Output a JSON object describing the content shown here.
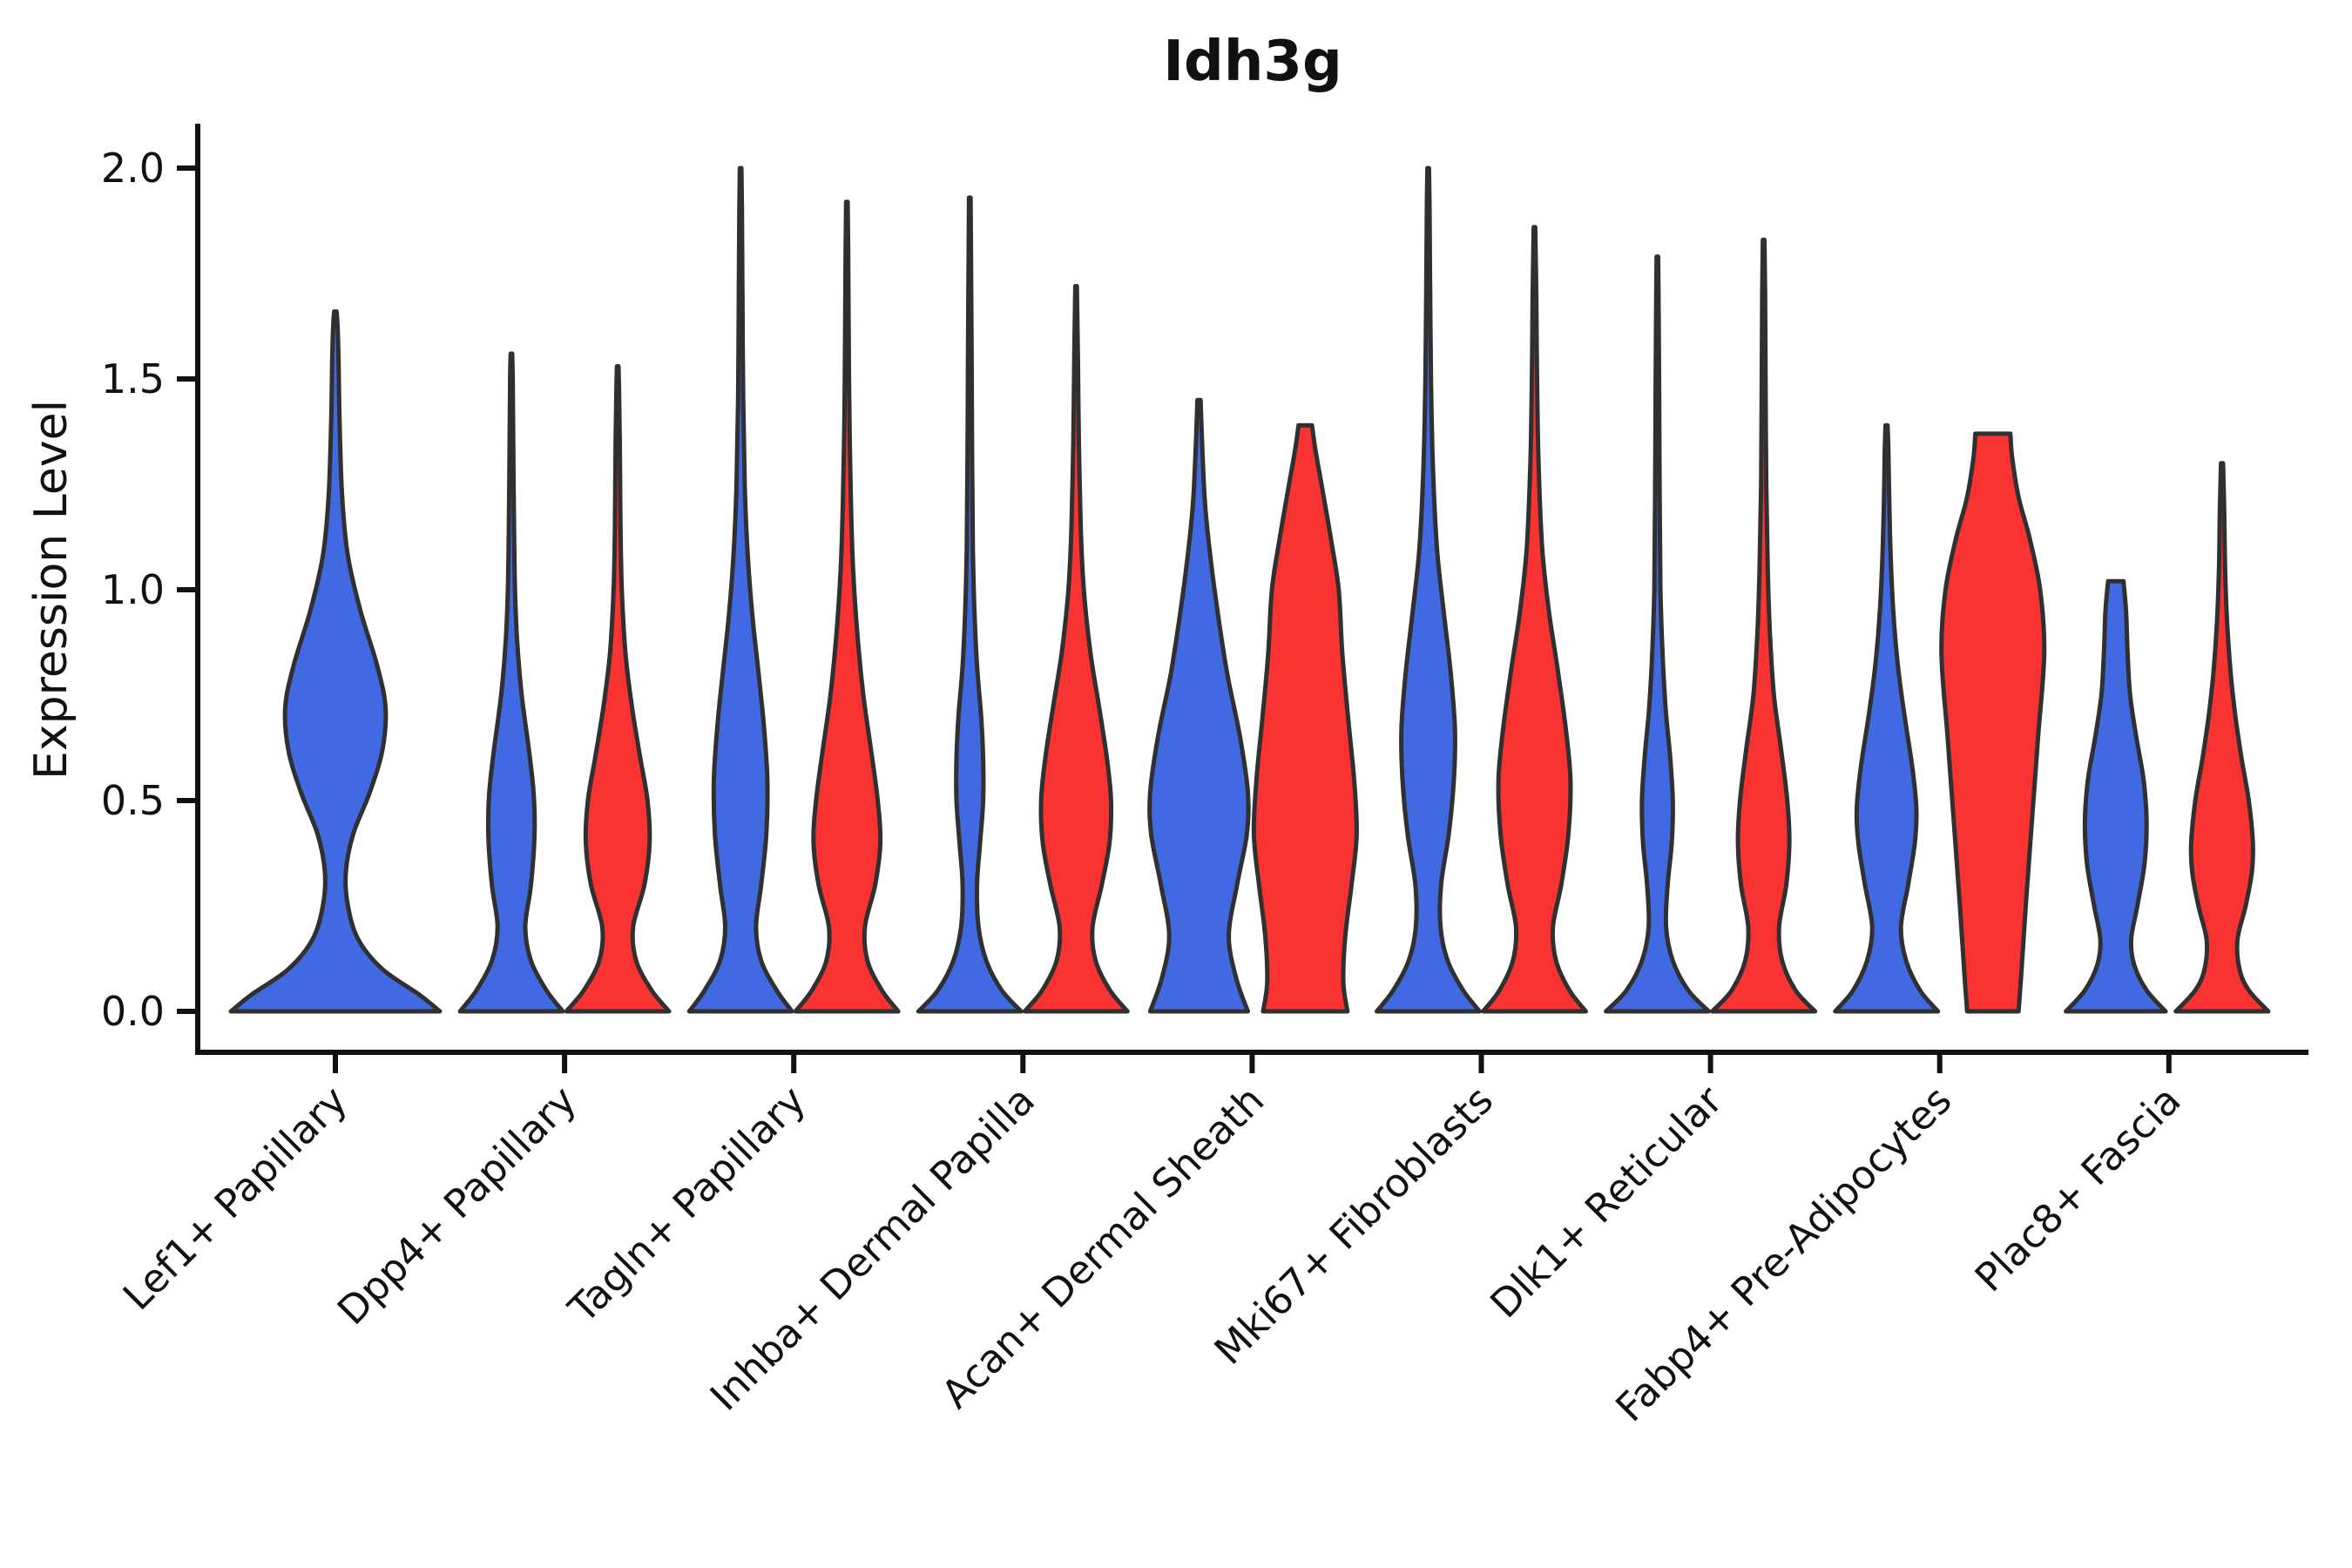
{
  "chart_data": {
    "type": "violin",
    "title": "Idh3g",
    "ylabel": "Expression Level",
    "xlabel": "",
    "yticks": [
      0.0,
      0.5,
      1.0,
      1.5,
      2.0
    ],
    "ytick_labels": [
      "0.0",
      "0.5",
      "1.0",
      "1.5",
      "2.0"
    ],
    "ylim": [
      0,
      2.05
    ],
    "grid": false,
    "legend_position": "none",
    "categories": [
      "Lef1+ Papillary",
      "Dpp4+ Papillary",
      "Tagln+ Papillary",
      "Inhba+ Dermal Papilla",
      "Acan+ Dermal Sheath",
      "Mki67+ Fibroblasts",
      "Dlk1+ Reticular",
      "Fabp4+ Pre-Adipocytes",
      "Plac8+ Fascia"
    ],
    "colors": {
      "blue": "#4169E1",
      "red": "#F93232",
      "outline": "#303030",
      "axis": "#111111",
      "text": "#111111"
    },
    "violins": [
      {
        "category": "Lef1+ Papillary",
        "cat_index": 0,
        "group": "blue",
        "position": "center",
        "max": 1.66,
        "profile": [
          [
            0,
            1.0
          ],
          [
            0.04,
            0.8
          ],
          [
            0.1,
            0.45
          ],
          [
            0.17,
            0.22
          ],
          [
            0.25,
            0.12
          ],
          [
            0.33,
            0.1
          ],
          [
            0.42,
            0.17
          ],
          [
            0.52,
            0.33
          ],
          [
            0.62,
            0.45
          ],
          [
            0.72,
            0.48
          ],
          [
            0.82,
            0.4
          ],
          [
            0.95,
            0.24
          ],
          [
            1.08,
            0.12
          ],
          [
            1.22,
            0.065
          ],
          [
            1.4,
            0.04
          ],
          [
            1.55,
            0.03
          ],
          [
            1.63,
            0.02
          ],
          [
            1.66,
            0.012
          ]
        ]
      },
      {
        "category": "Dpp4+ Papillary",
        "cat_index": 1,
        "group": "blue",
        "position": "left",
        "max": 1.56,
        "profile": [
          [
            0,
            1.0
          ],
          [
            0.05,
            0.68
          ],
          [
            0.12,
            0.38
          ],
          [
            0.2,
            0.27
          ],
          [
            0.3,
            0.38
          ],
          [
            0.42,
            0.45
          ],
          [
            0.52,
            0.43
          ],
          [
            0.62,
            0.34
          ],
          [
            0.75,
            0.2
          ],
          [
            0.88,
            0.11
          ],
          [
            1.0,
            0.07
          ],
          [
            1.15,
            0.05
          ],
          [
            1.35,
            0.035
          ],
          [
            1.5,
            0.025
          ],
          [
            1.56,
            0.015
          ]
        ]
      },
      {
        "category": "Dpp4+ Papillary",
        "cat_index": 1,
        "group": "red",
        "position": "right",
        "max": 1.53,
        "profile": [
          [
            0,
            1.0
          ],
          [
            0.05,
            0.66
          ],
          [
            0.12,
            0.36
          ],
          [
            0.2,
            0.3
          ],
          [
            0.3,
            0.52
          ],
          [
            0.4,
            0.62
          ],
          [
            0.5,
            0.58
          ],
          [
            0.6,
            0.44
          ],
          [
            0.72,
            0.28
          ],
          [
            0.85,
            0.15
          ],
          [
            1.0,
            0.08
          ],
          [
            1.15,
            0.055
          ],
          [
            1.35,
            0.04
          ],
          [
            1.48,
            0.025
          ],
          [
            1.53,
            0.015
          ]
        ]
      },
      {
        "category": "Tagln+ Papillary",
        "cat_index": 2,
        "group": "blue",
        "position": "left",
        "max": 2.0,
        "profile": [
          [
            0,
            1.0
          ],
          [
            0.05,
            0.7
          ],
          [
            0.12,
            0.4
          ],
          [
            0.2,
            0.3
          ],
          [
            0.3,
            0.4
          ],
          [
            0.42,
            0.5
          ],
          [
            0.55,
            0.52
          ],
          [
            0.68,
            0.45
          ],
          [
            0.8,
            0.35
          ],
          [
            0.95,
            0.22
          ],
          [
            1.1,
            0.13
          ],
          [
            1.25,
            0.08
          ],
          [
            1.45,
            0.05
          ],
          [
            1.7,
            0.035
          ],
          [
            1.9,
            0.025
          ],
          [
            2.0,
            0.015
          ]
        ]
      },
      {
        "category": "Tagln+ Papillary",
        "cat_index": 2,
        "group": "red",
        "position": "right",
        "max": 1.92,
        "profile": [
          [
            0,
            1.0
          ],
          [
            0.05,
            0.68
          ],
          [
            0.12,
            0.4
          ],
          [
            0.2,
            0.35
          ],
          [
            0.3,
            0.55
          ],
          [
            0.4,
            0.65
          ],
          [
            0.5,
            0.6
          ],
          [
            0.62,
            0.47
          ],
          [
            0.75,
            0.32
          ],
          [
            0.9,
            0.2
          ],
          [
            1.05,
            0.12
          ],
          [
            1.2,
            0.08
          ],
          [
            1.4,
            0.05
          ],
          [
            1.6,
            0.035
          ],
          [
            1.8,
            0.025
          ],
          [
            1.92,
            0.015
          ]
        ]
      },
      {
        "category": "Inhba+ Dermal Papilla",
        "cat_index": 3,
        "group": "blue",
        "position": "left",
        "max": 1.93,
        "profile": [
          [
            0,
            1.0
          ],
          [
            0.05,
            0.62
          ],
          [
            0.12,
            0.32
          ],
          [
            0.2,
            0.17
          ],
          [
            0.3,
            0.14
          ],
          [
            0.4,
            0.2
          ],
          [
            0.5,
            0.26
          ],
          [
            0.6,
            0.26
          ],
          [
            0.7,
            0.22
          ],
          [
            0.82,
            0.14
          ],
          [
            0.95,
            0.09
          ],
          [
            1.1,
            0.06
          ],
          [
            1.3,
            0.045
          ],
          [
            1.55,
            0.035
          ],
          [
            1.75,
            0.025
          ],
          [
            1.93,
            0.015
          ]
        ]
      },
      {
        "category": "Inhba+ Dermal Papilla",
        "cat_index": 3,
        "group": "red",
        "position": "right",
        "max": 1.72,
        "profile": [
          [
            0,
            1.0
          ],
          [
            0.05,
            0.66
          ],
          [
            0.12,
            0.38
          ],
          [
            0.2,
            0.32
          ],
          [
            0.3,
            0.5
          ],
          [
            0.4,
            0.65
          ],
          [
            0.5,
            0.68
          ],
          [
            0.6,
            0.6
          ],
          [
            0.72,
            0.45
          ],
          [
            0.85,
            0.28
          ],
          [
            1.0,
            0.15
          ],
          [
            1.15,
            0.09
          ],
          [
            1.35,
            0.055
          ],
          [
            1.55,
            0.035
          ],
          [
            1.72,
            0.015
          ]
        ]
      },
      {
        "category": "Acan+ Dermal Sheath",
        "cat_index": 4,
        "group": "blue",
        "position": "left",
        "max": 1.45,
        "profile": [
          [
            0,
            0.95
          ],
          [
            0.08,
            0.72
          ],
          [
            0.18,
            0.58
          ],
          [
            0.3,
            0.74
          ],
          [
            0.42,
            0.93
          ],
          [
            0.52,
            0.95
          ],
          [
            0.65,
            0.8
          ],
          [
            0.8,
            0.55
          ],
          [
            0.95,
            0.36
          ],
          [
            1.08,
            0.22
          ],
          [
            1.2,
            0.12
          ],
          [
            1.32,
            0.07
          ],
          [
            1.45,
            0.03
          ]
        ]
      },
      {
        "category": "Acan+ Dermal Sheath",
        "cat_index": 4,
        "group": "red",
        "position": "right",
        "max": 1.39,
        "profile": [
          [
            0,
            0.82
          ],
          [
            0.07,
            0.74
          ],
          [
            0.18,
            0.78
          ],
          [
            0.3,
            0.9
          ],
          [
            0.42,
            1.0
          ],
          [
            0.55,
            0.95
          ],
          [
            0.7,
            0.83
          ],
          [
            0.85,
            0.72
          ],
          [
            1.0,
            0.65
          ],
          [
            1.12,
            0.5
          ],
          [
            1.24,
            0.33
          ],
          [
            1.33,
            0.2
          ],
          [
            1.39,
            0.13
          ]
        ]
      },
      {
        "category": "Mki67+ Fibroblasts",
        "cat_index": 5,
        "group": "blue",
        "position": "left",
        "max": 2.0,
        "profile": [
          [
            0,
            1.0
          ],
          [
            0.05,
            0.68
          ],
          [
            0.12,
            0.38
          ],
          [
            0.2,
            0.24
          ],
          [
            0.3,
            0.25
          ],
          [
            0.42,
            0.4
          ],
          [
            0.55,
            0.5
          ],
          [
            0.67,
            0.52
          ],
          [
            0.8,
            0.44
          ],
          [
            0.95,
            0.3
          ],
          [
            1.1,
            0.17
          ],
          [
            1.3,
            0.09
          ],
          [
            1.5,
            0.055
          ],
          [
            1.75,
            0.035
          ],
          [
            1.92,
            0.025
          ],
          [
            2.0,
            0.015
          ]
        ]
      },
      {
        "category": "Mki67+ Fibroblasts",
        "cat_index": 5,
        "group": "red",
        "position": "right",
        "max": 1.86,
        "profile": [
          [
            0,
            1.0
          ],
          [
            0.05,
            0.68
          ],
          [
            0.12,
            0.42
          ],
          [
            0.2,
            0.36
          ],
          [
            0.3,
            0.52
          ],
          [
            0.42,
            0.66
          ],
          [
            0.55,
            0.7
          ],
          [
            0.68,
            0.6
          ],
          [
            0.82,
            0.44
          ],
          [
            0.95,
            0.28
          ],
          [
            1.1,
            0.15
          ],
          [
            1.3,
            0.08
          ],
          [
            1.5,
            0.05
          ],
          [
            1.7,
            0.035
          ],
          [
            1.86,
            0.015
          ]
        ]
      },
      {
        "category": "Dlk1+ Reticular",
        "cat_index": 6,
        "group": "blue",
        "position": "left",
        "max": 1.79,
        "profile": [
          [
            0,
            1.0
          ],
          [
            0.05,
            0.6
          ],
          [
            0.12,
            0.3
          ],
          [
            0.2,
            0.17
          ],
          [
            0.3,
            0.2
          ],
          [
            0.4,
            0.28
          ],
          [
            0.5,
            0.3
          ],
          [
            0.6,
            0.25
          ],
          [
            0.72,
            0.16
          ],
          [
            0.85,
            0.1
          ],
          [
            1.0,
            0.06
          ],
          [
            1.2,
            0.045
          ],
          [
            1.45,
            0.035
          ],
          [
            1.65,
            0.025
          ],
          [
            1.79,
            0.015
          ]
        ]
      },
      {
        "category": "Dlk1+ Reticular",
        "cat_index": 6,
        "group": "red",
        "position": "right",
        "max": 1.83,
        "profile": [
          [
            0,
            1.0
          ],
          [
            0.05,
            0.62
          ],
          [
            0.12,
            0.36
          ],
          [
            0.2,
            0.3
          ],
          [
            0.3,
            0.44
          ],
          [
            0.4,
            0.5
          ],
          [
            0.5,
            0.46
          ],
          [
            0.62,
            0.34
          ],
          [
            0.75,
            0.2
          ],
          [
            0.9,
            0.12
          ],
          [
            1.05,
            0.08
          ],
          [
            1.25,
            0.05
          ],
          [
            1.5,
            0.038
          ],
          [
            1.7,
            0.028
          ],
          [
            1.83,
            0.015
          ]
        ]
      },
      {
        "category": "Fabp4+ Pre-Adipocytes",
        "cat_index": 7,
        "group": "blue",
        "position": "left",
        "max": 1.39,
        "profile": [
          [
            0,
            1.0
          ],
          [
            0.05,
            0.65
          ],
          [
            0.12,
            0.38
          ],
          [
            0.2,
            0.28
          ],
          [
            0.3,
            0.42
          ],
          [
            0.4,
            0.55
          ],
          [
            0.48,
            0.58
          ],
          [
            0.58,
            0.5
          ],
          [
            0.7,
            0.35
          ],
          [
            0.82,
            0.22
          ],
          [
            0.95,
            0.13
          ],
          [
            1.08,
            0.08
          ],
          [
            1.22,
            0.05
          ],
          [
            1.33,
            0.035
          ],
          [
            1.39,
            0.02
          ]
        ]
      },
      {
        "category": "Fabp4+ Pre-Adipocytes",
        "cat_index": 7,
        "group": "red",
        "position": "right",
        "max": 1.37,
        "profile": [
          [
            0,
            0.5
          ],
          [
            0.1,
            0.56
          ],
          [
            0.25,
            0.64
          ],
          [
            0.45,
            0.76
          ],
          [
            0.65,
            0.88
          ],
          [
            0.85,
            1.0
          ],
          [
            1.0,
            0.92
          ],
          [
            1.12,
            0.72
          ],
          [
            1.22,
            0.5
          ],
          [
            1.31,
            0.38
          ],
          [
            1.37,
            0.34
          ]
        ]
      },
      {
        "category": "Plac8+ Fascia",
        "cat_index": 8,
        "group": "blue",
        "position": "left",
        "max": 1.02,
        "profile": [
          [
            0,
            0.97
          ],
          [
            0.05,
            0.6
          ],
          [
            0.11,
            0.36
          ],
          [
            0.17,
            0.3
          ],
          [
            0.25,
            0.42
          ],
          [
            0.35,
            0.56
          ],
          [
            0.45,
            0.6
          ],
          [
            0.55,
            0.54
          ],
          [
            0.65,
            0.4
          ],
          [
            0.75,
            0.28
          ],
          [
            0.85,
            0.23
          ],
          [
            0.95,
            0.2
          ],
          [
            1.02,
            0.15
          ]
        ]
      },
      {
        "category": "Plac8+ Fascia",
        "cat_index": 8,
        "group": "red",
        "position": "right",
        "max": 1.3,
        "profile": [
          [
            0,
            0.9
          ],
          [
            0.05,
            0.52
          ],
          [
            0.1,
            0.34
          ],
          [
            0.17,
            0.3
          ],
          [
            0.25,
            0.46
          ],
          [
            0.33,
            0.58
          ],
          [
            0.4,
            0.6
          ],
          [
            0.5,
            0.52
          ],
          [
            0.6,
            0.38
          ],
          [
            0.7,
            0.26
          ],
          [
            0.8,
            0.17
          ],
          [
            0.92,
            0.1
          ],
          [
            1.05,
            0.06
          ],
          [
            1.2,
            0.04
          ],
          [
            1.3,
            0.02
          ]
        ]
      }
    ]
  }
}
